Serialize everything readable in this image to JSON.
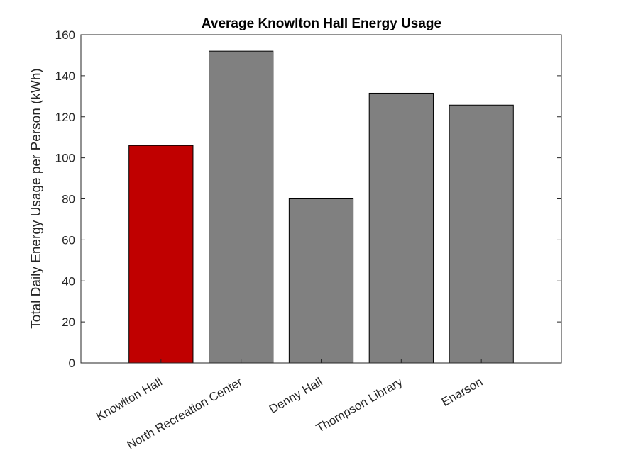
{
  "chart_data": {
    "type": "bar",
    "title": "Average Knowlton Hall Energy Usage",
    "xlabel": "",
    "ylabel": "Total Daily Energy Usage per Person (kWh)",
    "categories": [
      "Knowlton Hall",
      "North Recreation Center",
      "Denny Hall",
      "Thompson Library",
      "Enarson"
    ],
    "values": [
      106,
      152,
      80,
      131.5,
      125.7
    ],
    "bar_colors": [
      "#c00000",
      "#808080",
      "#808080",
      "#808080",
      "#808080"
    ],
    "ylim": [
      0,
      160
    ],
    "yticks": [
      0,
      20,
      40,
      60,
      80,
      100,
      120,
      140,
      160
    ],
    "grid": false,
    "legend": "none"
  }
}
